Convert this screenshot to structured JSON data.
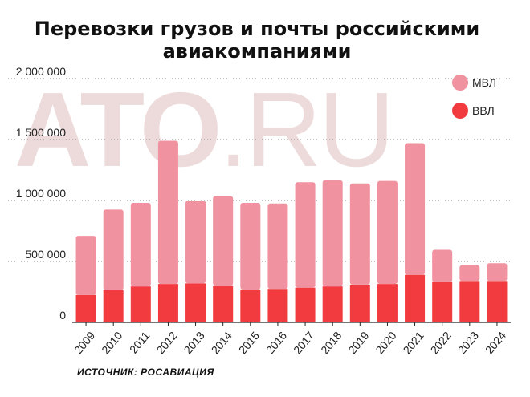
{
  "title_lines": [
    "Перевозки грузов и почты российскими",
    "авиакомпаниями"
  ],
  "watermark": {
    "part1": "ATO",
    "part2": ".RU"
  },
  "source": "ИСТОЧНИК: РОСАВИАЦИЯ",
  "colors": {
    "mvl": "#f0929f",
    "vvl": "#f23b3e",
    "watermark": "#e0bcbc"
  },
  "chart_data": {
    "type": "bar",
    "stacked": true,
    "categories": [
      "2009",
      "2010",
      "2011",
      "2012",
      "2013",
      "2014",
      "2015",
      "2016",
      "2017",
      "2018",
      "2019",
      "2020",
      "2021",
      "2022",
      "2023",
      "2024"
    ],
    "series": [
      {
        "name": "ВВЛ",
        "color": "#f23b3e",
        "values": [
          225000,
          265000,
          295000,
          315000,
          320000,
          300000,
          270000,
          275000,
          285000,
          295000,
          310000,
          315000,
          390000,
          330000,
          340000,
          340000
        ]
      },
      {
        "name": "МВЛ",
        "color": "#f0929f",
        "values": [
          485000,
          660000,
          685000,
          1175000,
          680000,
          735000,
          710000,
          700000,
          865000,
          870000,
          830000,
          845000,
          1080000,
          265000,
          130000,
          145000
        ]
      }
    ],
    "yticks": [
      "2 000 000",
      "1 500 000",
      "1 000 000",
      "500 000",
      "0"
    ],
    "ytick_values": [
      2000000,
      1500000,
      1000000,
      500000,
      0
    ],
    "ylim": [
      0,
      2000000
    ],
    "legend": [
      "МВЛ",
      "ВВЛ"
    ],
    "legend_position": "top-right",
    "grid": "horizontal dotted"
  }
}
